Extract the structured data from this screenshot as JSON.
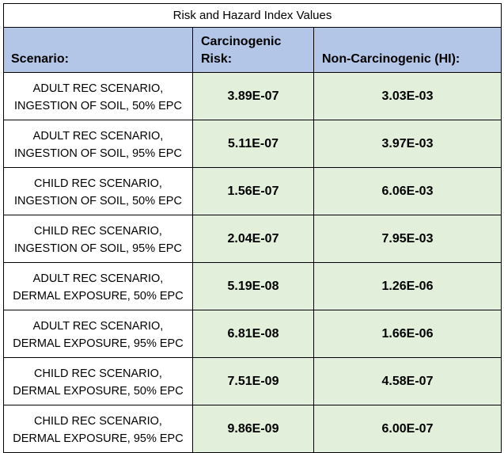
{
  "title": "Risk and Hazard Index Values",
  "headers": {
    "scenario": "Scenario:",
    "carc_line1": "Carcinogenic",
    "carc_line2": "Risk:",
    "noncarc": "Non-Carcinogenic (HI):"
  },
  "rows": [
    {
      "line1": "ADULT REC SCENARIO,",
      "line2": "INGESTION OF SOIL, 50% EPC",
      "carc": "3.89E-07",
      "noncarc": "3.03E-03"
    },
    {
      "line1": "ADULT REC SCENARIO,",
      "line2": "INGESTION OF SOIL, 95% EPC",
      "carc": "5.11E-07",
      "noncarc": "3.97E-03"
    },
    {
      "line1": "CHILD REC SCENARIO,",
      "line2": "INGESTION OF SOIL, 50% EPC",
      "carc": "1.56E-07",
      "noncarc": "6.06E-03"
    },
    {
      "line1": "CHILD REC SCENARIO,",
      "line2": "INGESTION OF SOIL, 95% EPC",
      "carc": "2.04E-07",
      "noncarc": "7.95E-03"
    },
    {
      "line1": "ADULT REC SCENARIO,",
      "line2": "DERMAL EXPOSURE, 50% EPC",
      "carc": "5.19E-08",
      "noncarc": "1.26E-06"
    },
    {
      "line1": "ADULT REC SCENARIO,",
      "line2": "DERMAL EXPOSURE, 95% EPC",
      "carc": "6.81E-08",
      "noncarc": "1.66E-06"
    },
    {
      "line1": "CHILD REC SCENARIO,",
      "line2": "DERMAL EXPOSURE, 50% EPC",
      "carc": "7.51E-09",
      "noncarc": "4.58E-07"
    },
    {
      "line1": "CHILD REC SCENARIO,",
      "line2": "DERMAL EXPOSURE, 95% EPC",
      "carc": "9.86E-09",
      "noncarc": "6.00E-07"
    }
  ],
  "colors": {
    "header_bg": "#b4c6e7",
    "value_bg": "#e2efda"
  }
}
